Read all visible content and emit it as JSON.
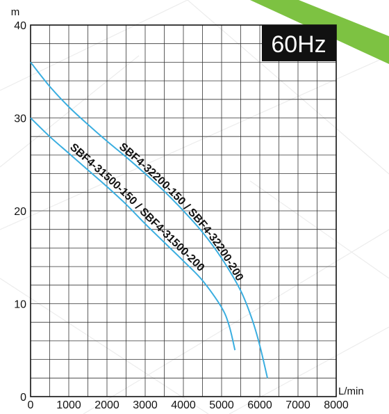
{
  "badge": "60Hz",
  "colors": {
    "curve": "#3aaee0",
    "grid": "#333333",
    "badge_bg": "#111111",
    "badge_text": "#ffffff",
    "accent": "#7dc242"
  },
  "chart_data": {
    "type": "line",
    "xlabel": "L/min",
    "ylabel": "m",
    "xlim": [
      0,
      8000
    ],
    "ylim": [
      0,
      40
    ],
    "x_ticks": [
      "0",
      "1000",
      "2000",
      "3000",
      "4000",
      "5000",
      "6000",
      "7000",
      "8000"
    ],
    "y_ticks": [
      "0",
      "10",
      "20",
      "30",
      "40"
    ],
    "grid": true,
    "series": [
      {
        "name": "SBF4-32200-150 / SBF4-32200-200",
        "x": [
          0,
          500,
          1000,
          1500,
          2000,
          2500,
          3000,
          3500,
          4000,
          4500,
          5000,
          5500,
          5800,
          6000,
          6200
        ],
        "y": [
          36,
          33.4,
          31.2,
          29.3,
          27.5,
          25.8,
          24.0,
          22.1,
          20.0,
          17.7,
          14.9,
          11.4,
          8.3,
          5.5,
          2.0
        ]
      },
      {
        "name": "SBF4-31500-150 / SBF4-31500-200",
        "x": [
          0,
          500,
          1000,
          1500,
          2000,
          2500,
          3000,
          3500,
          4000,
          4500,
          5000,
          5200,
          5350
        ],
        "y": [
          30,
          28.0,
          26.2,
          24.4,
          22.6,
          20.7,
          18.6,
          16.6,
          14.6,
          12.5,
          9.6,
          7.6,
          5.0
        ]
      }
    ]
  }
}
